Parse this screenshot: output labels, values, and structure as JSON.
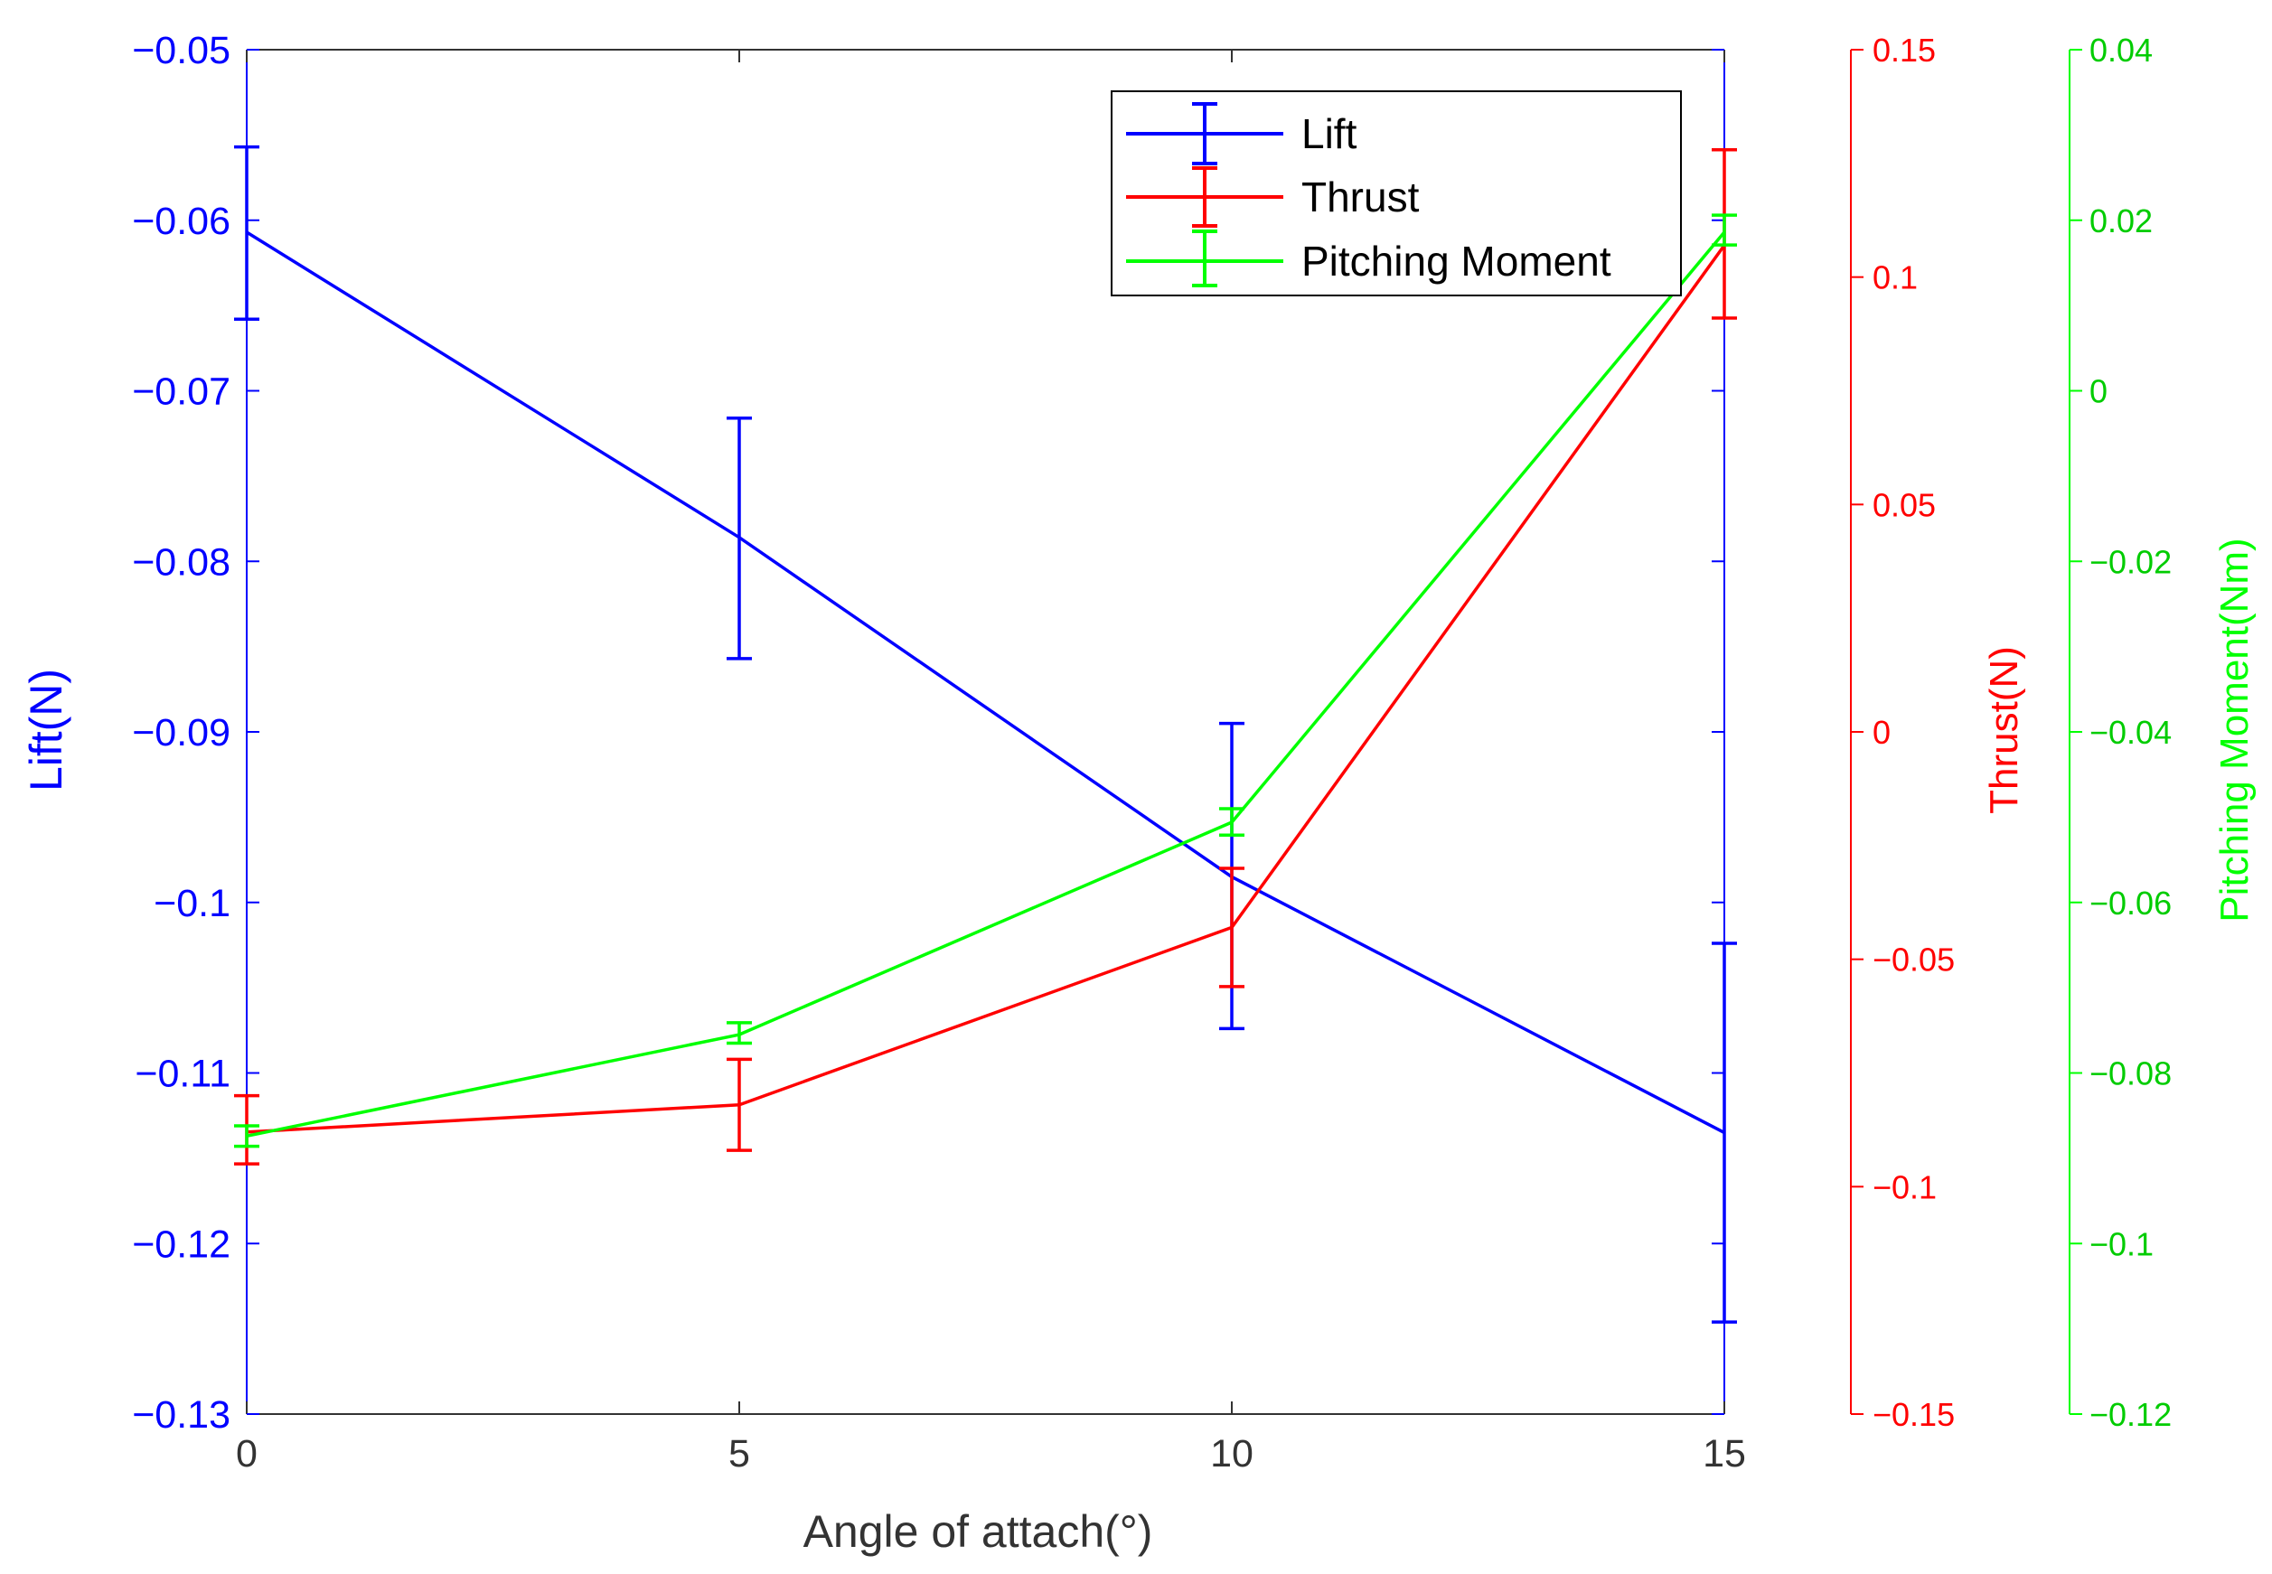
{
  "chart_data": {
    "type": "line",
    "xlabel": "Angle of attach(°)",
    "x": [
      0,
      5,
      10,
      15
    ],
    "x_ticks": [
      "0",
      "5",
      "10",
      "15"
    ],
    "xlim": [
      0,
      15
    ],
    "axes": {
      "lift": {
        "label": "Lift(N)",
        "ylim": [
          -0.13,
          -0.05
        ],
        "ticks": [
          -0.05,
          -0.06,
          -0.07,
          -0.08,
          -0.09,
          -0.1,
          -0.11,
          -0.12,
          -0.13
        ],
        "tick_labels": [
          "−0.05",
          "−0.06",
          "−0.07",
          "−0.08",
          "−0.09",
          "−0.1",
          "−0.11",
          "−0.12",
          "−0.13"
        ],
        "color": "#0000ff"
      },
      "thrust": {
        "label": "Thrust(N)",
        "ylim": [
          -0.15,
          0.15
        ],
        "ticks": [
          0.15,
          0.1,
          0.05,
          0,
          -0.05,
          -0.1,
          -0.15
        ],
        "tick_labels": [
          "0.15",
          "0.1",
          "0.05",
          "0",
          "−0.05",
          "−0.1",
          "−0.15"
        ],
        "color": "#ff0000"
      },
      "moment": {
        "label": "Pitching Moment(Nm)",
        "ylim": [
          -0.12,
          0.04
        ],
        "ticks": [
          0.04,
          0.02,
          0,
          -0.02,
          -0.04,
          -0.06,
          -0.08,
          -0.1,
          -0.12
        ],
        "tick_labels": [
          "0.04",
          "0.02",
          "0",
          "−0.02",
          "−0.04",
          "−0.06",
          "−0.08",
          "−0.1",
          "−0.12"
        ],
        "color": "#00ff00"
      }
    },
    "series": [
      {
        "name": "Lift",
        "axis": "lift",
        "color": "#0000ff",
        "values": [
          -0.0607,
          -0.0786,
          -0.0985,
          -0.1135
        ],
        "err_low": [
          -0.0658,
          -0.0857,
          -0.1074,
          -0.1246
        ],
        "err_high": [
          -0.0557,
          -0.0716,
          -0.0895,
          -0.1024
        ]
      },
      {
        "name": "Thrust",
        "axis": "thrust",
        "color": "#ff0000",
        "values": [
          -0.088,
          -0.082,
          -0.043,
          0.107
        ],
        "err_low": [
          -0.095,
          -0.092,
          -0.056,
          0.091
        ],
        "err_high": [
          -0.08,
          -0.072,
          -0.03,
          0.128
        ]
      },
      {
        "name": "Pitching Moment",
        "axis": "moment",
        "color": "#00ff00",
        "values": [
          -0.0874,
          -0.0755,
          -0.0506,
          0.0186
        ],
        "err_low": [
          -0.0886,
          -0.0765,
          -0.0521,
          0.0171
        ],
        "err_high": [
          -0.0862,
          -0.0741,
          -0.049,
          0.0206
        ]
      }
    ],
    "legend": {
      "position": "top-right",
      "entries": [
        "Lift",
        "Thrust",
        "Pitching Moment"
      ]
    }
  }
}
